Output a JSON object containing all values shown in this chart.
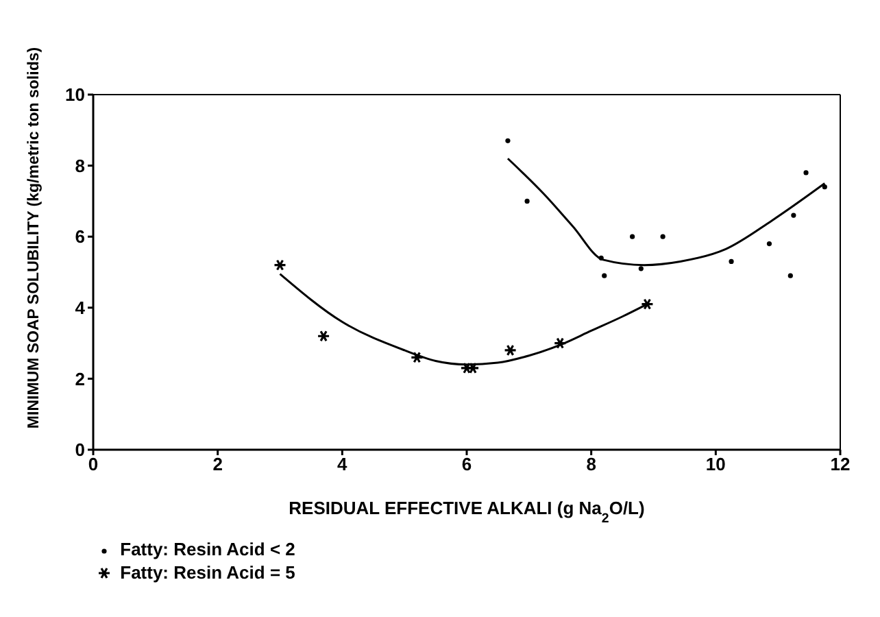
{
  "chart_data": {
    "type": "scatter",
    "xlabel": "RESIDUAL EFFECTIVE ALKALI (g Na$_{2}$O/L)",
    "ylabel": "MINIMUM SOAP SOLUBILITY (kg/metric ton solids)",
    "xlim": [
      0,
      12
    ],
    "xticks": [
      0,
      2,
      4,
      6,
      8,
      10,
      12
    ],
    "ylim": [
      0,
      10
    ],
    "yticks": [
      0,
      2,
      4,
      6,
      8,
      10
    ],
    "grid": false,
    "legend": "bottom left",
    "series": [
      {
        "name": "Fatty: Resin Acid < 2",
        "marker": "circle",
        "color": "#000000",
        "x": [
          6.66,
          6.97,
          8.16,
          8.21,
          8.66,
          8.8,
          9.15,
          10.25,
          10.86,
          11.2,
          11.25,
          11.45,
          11.75
        ],
        "values": [
          8.7,
          7.0,
          5.4,
          4.9,
          6.0,
          5.1,
          6.0,
          5.3,
          5.8,
          4.9,
          6.6,
          7.8,
          7.4
        ]
      },
      {
        "name": "Fatty: Resin Acid = 5",
        "marker": "cross",
        "color": "#000000",
        "x": [
          3.0,
          3.7,
          5.2,
          6.0,
          6.1,
          6.7,
          7.5,
          8.9
        ],
        "values": [
          5.2,
          3.2,
          2.6,
          2.3,
          2.3,
          2.8,
          3.0,
          4.1
        ]
      },
      {
        "type": "line",
        "marker": "none",
        "color": "#000000",
        "x": [
          6.66,
          7.24,
          7.7,
          8.19,
          8.85,
          9.43,
          10.16,
          10.9,
          11.75
        ],
        "values": [
          8.2,
          7.2,
          6.3,
          5.35,
          5.2,
          5.3,
          5.65,
          6.45,
          7.5
        ]
      },
      {
        "type": "line",
        "marker": "none",
        "color": "#000000",
        "x": [
          3.0,
          4.0,
          5.0,
          5.5,
          6.0,
          6.5,
          7.0,
          7.5,
          8.0,
          8.5,
          8.9
        ],
        "values": [
          4.95,
          3.6,
          2.8,
          2.5,
          2.4,
          2.45,
          2.65,
          2.95,
          3.35,
          3.75,
          4.1
        ]
      }
    ]
  }
}
